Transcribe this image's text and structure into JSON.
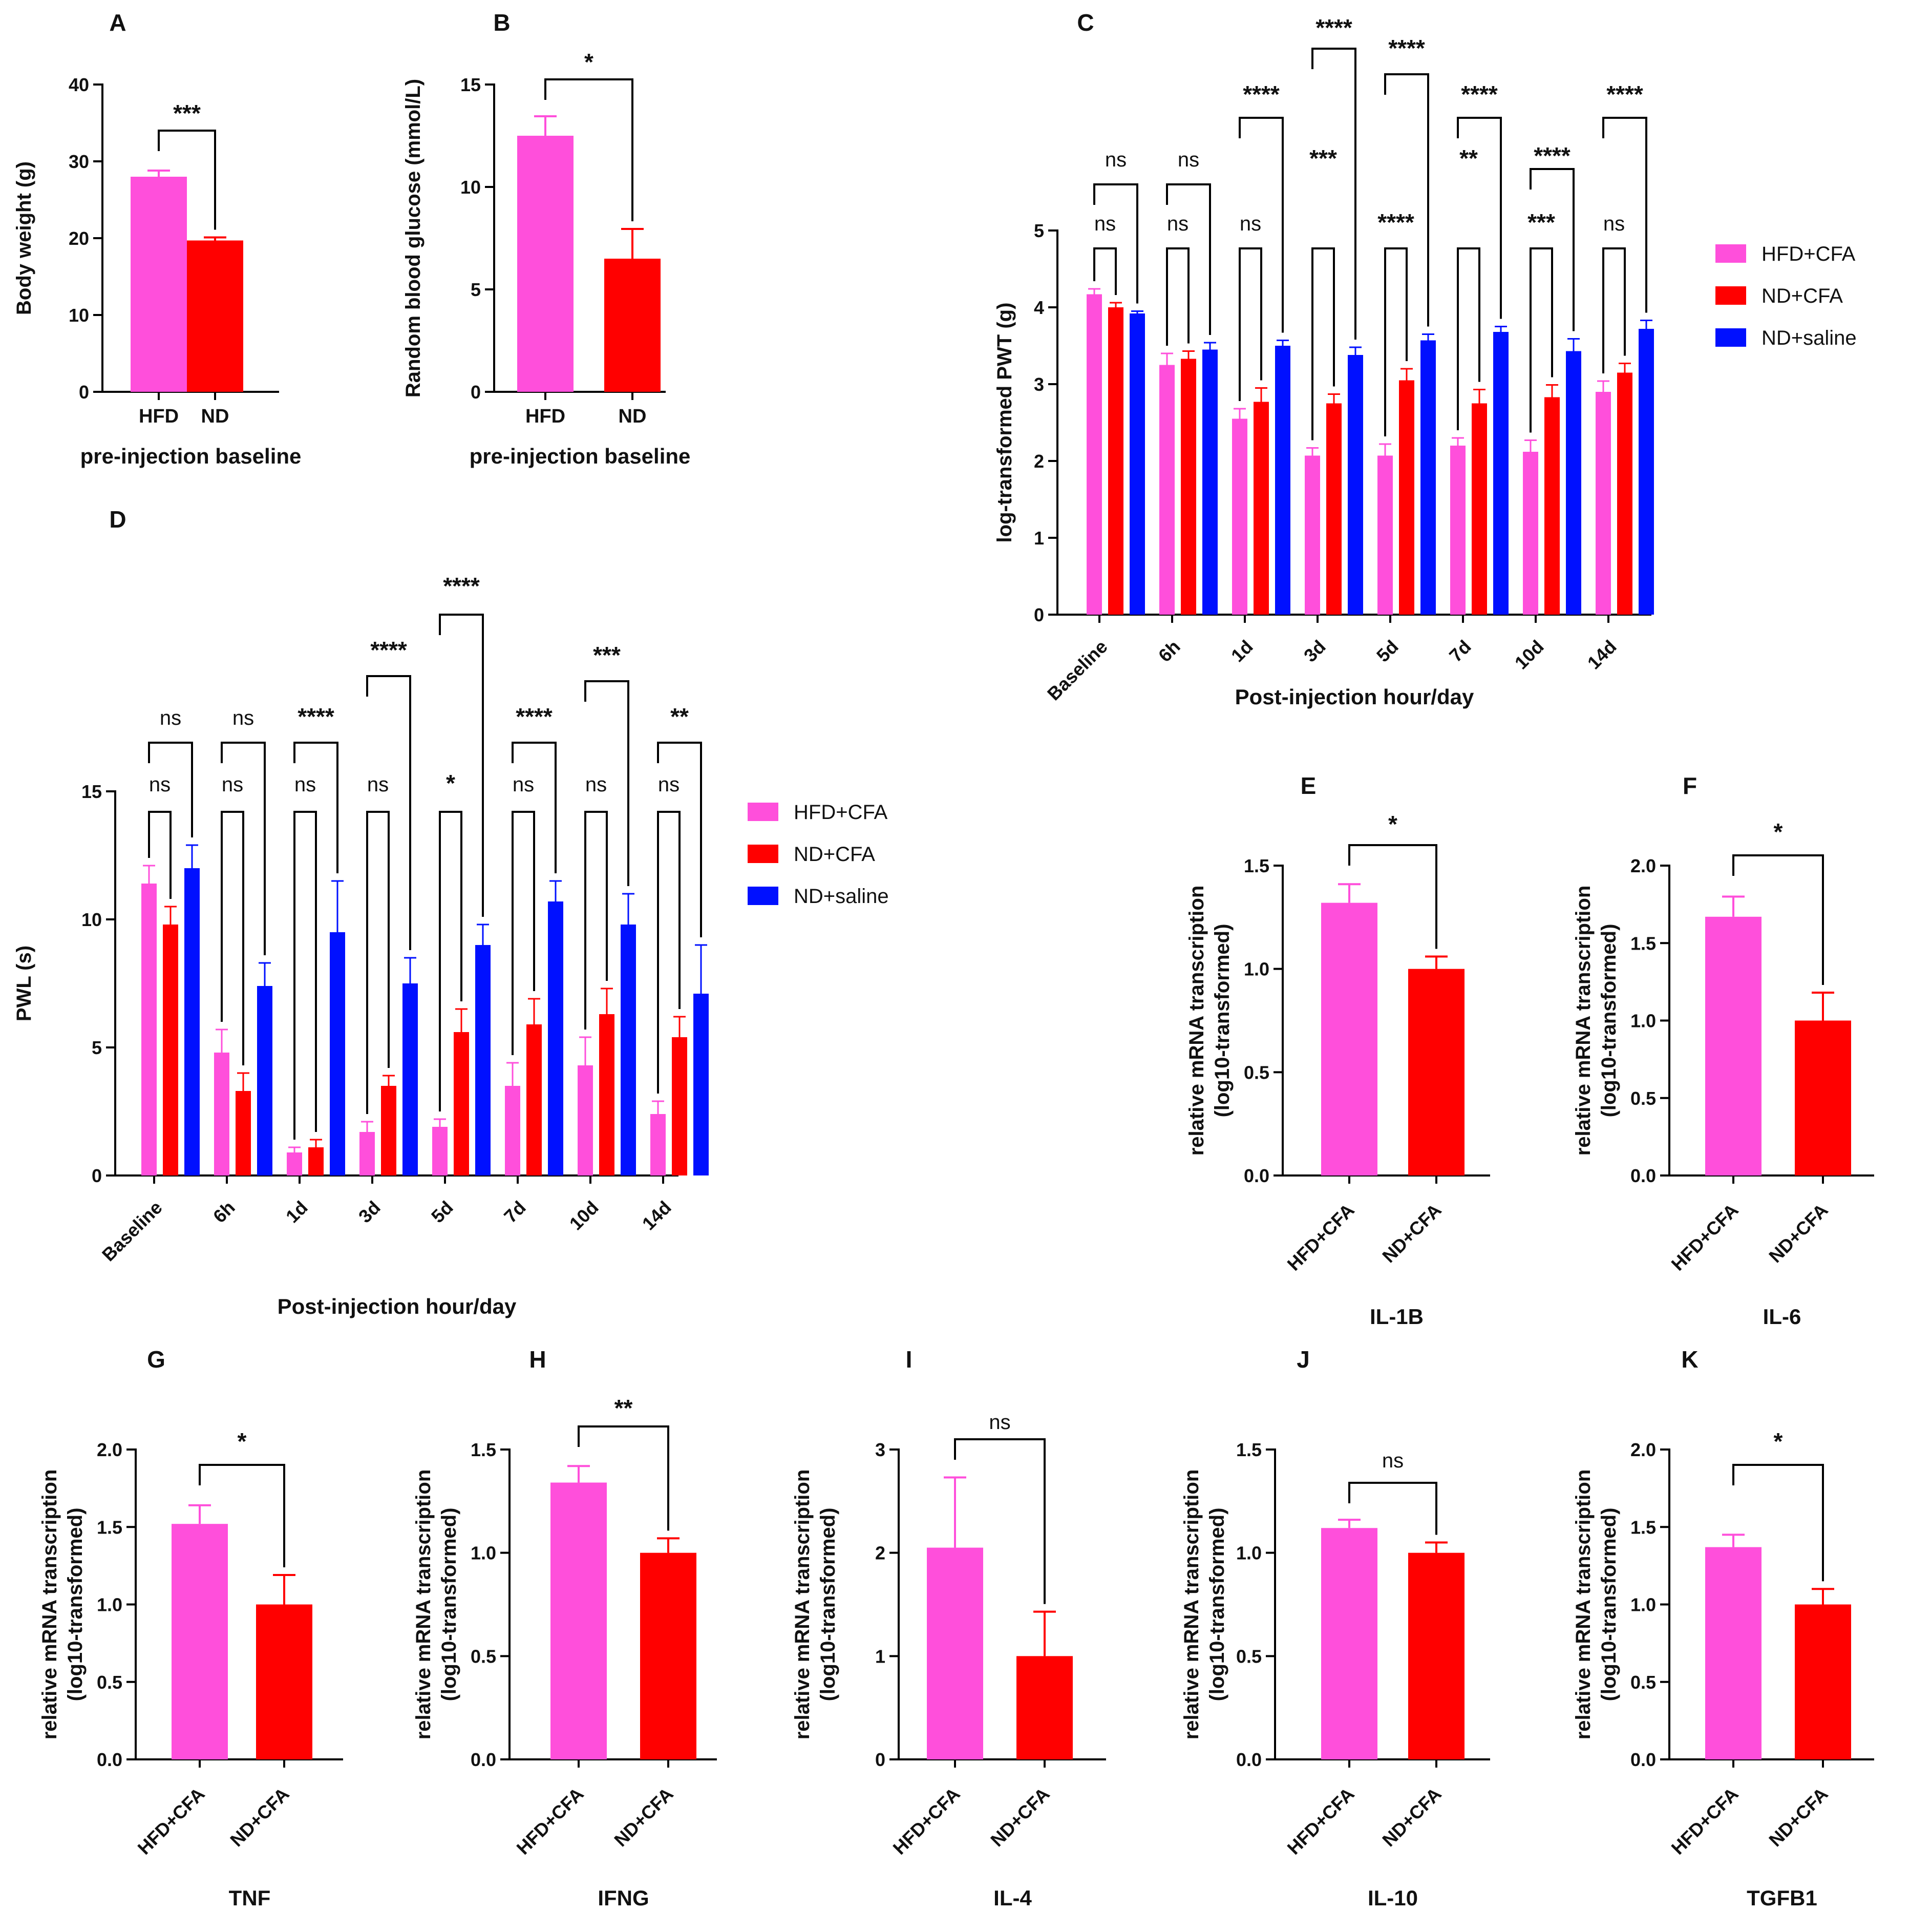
{
  "colors": {
    "hfd_cfa": "#ff4fdb",
    "nd_cfa": "#ff0000",
    "nd_saline": "#0010ff"
  },
  "chart_data": [
    {
      "id": "A",
      "type": "bar",
      "panel_letter": "A",
      "categories": [
        "HFD",
        "ND"
      ],
      "values": [
        28.0,
        19.7
      ],
      "errors": [
        0.8,
        0.4
      ],
      "ylabel": "Body weight (g)",
      "xlabel": "pre-injection baseline",
      "ylim": [
        0,
        40
      ],
      "yticks": [
        "0",
        "10",
        "20",
        "30",
        "40"
      ],
      "sig": [
        "***"
      ]
    },
    {
      "id": "B",
      "type": "bar",
      "panel_letter": "B",
      "categories": [
        "HFD",
        "ND"
      ],
      "values": [
        12.5,
        6.5
      ],
      "errors": [
        0.95,
        1.45
      ],
      "ylabel": "Random blood glucose (mmol/L)",
      "xlabel": "pre-injection baseline",
      "ylim": [
        0,
        15
      ],
      "yticks": [
        "0",
        "5",
        "10",
        "15"
      ],
      "sig": [
        "*"
      ]
    },
    {
      "id": "C",
      "type": "bar",
      "panel_letter": "C",
      "categories": [
        "Baseline",
        "6h",
        "1d",
        "3d",
        "5d",
        "7d",
        "10d",
        "14d"
      ],
      "series": [
        {
          "name": "HFD+CFA",
          "values": [
            4.17,
            3.25,
            2.55,
            2.07,
            2.07,
            2.2,
            2.12,
            2.9
          ],
          "errors": [
            0.07,
            0.15,
            0.13,
            0.1,
            0.15,
            0.1,
            0.15,
            0.14
          ]
        },
        {
          "name": "ND+CFA",
          "values": [
            4.0,
            3.33,
            2.77,
            2.75,
            3.05,
            2.75,
            2.83,
            3.15
          ],
          "errors": [
            0.06,
            0.1,
            0.18,
            0.12,
            0.15,
            0.18,
            0.16,
            0.12
          ]
        },
        {
          "name": "ND+saline",
          "values": [
            3.92,
            3.45,
            3.5,
            3.38,
            3.57,
            3.68,
            3.43,
            3.72
          ],
          "errors": [
            0.03,
            0.09,
            0.07,
            0.1,
            0.08,
            0.07,
            0.16,
            0.11
          ]
        }
      ],
      "ylabel": "log-transformed PWT (g)",
      "xlabel": "Post-injection hour/day",
      "ylim": [
        0,
        5
      ],
      "yticks": [
        "0",
        "1",
        "2",
        "3",
        "4",
        "5"
      ],
      "sig_lower": [
        "ns",
        "ns",
        "ns",
        "***",
        "****",
        "**",
        "***",
        "ns"
      ],
      "sig_upper": [
        "ns",
        "ns",
        "****",
        "****",
        "****",
        "****",
        "****",
        "****"
      ],
      "legend": [
        "HFD+CFA",
        "ND+CFA",
        "ND+saline"
      ]
    },
    {
      "id": "D",
      "type": "bar",
      "panel_letter": "D",
      "categories": [
        "Baseline",
        "6h",
        "1d",
        "3d",
        "5d",
        "7d",
        "10d",
        "14d"
      ],
      "series": [
        {
          "name": "HFD+CFA",
          "values": [
            11.4,
            4.8,
            0.9,
            1.7,
            1.9,
            3.5,
            4.3,
            2.4
          ],
          "errors": [
            0.7,
            0.9,
            0.2,
            0.4,
            0.3,
            0.9,
            1.1,
            0.5
          ]
        },
        {
          "name": "ND+CFA",
          "values": [
            9.8,
            3.3,
            1.1,
            3.5,
            5.6,
            5.9,
            6.3,
            5.4
          ],
          "errors": [
            0.7,
            0.7,
            0.3,
            0.4,
            0.9,
            1.0,
            1.0,
            0.8
          ]
        },
        {
          "name": "ND+saline",
          "values": [
            12.0,
            7.4,
            9.5,
            7.5,
            9.0,
            10.7,
            9.8,
            7.1
          ],
          "errors": [
            0.9,
            0.9,
            2.0,
            1.0,
            0.8,
            0.8,
            1.2,
            1.9
          ]
        }
      ],
      "ylabel": "PWL (s)",
      "xlabel": "Post-injection hour/day",
      "ylim": [
        0,
        15
      ],
      "yticks": [
        "0",
        "5",
        "10",
        "15"
      ],
      "sig_lower": [
        "ns",
        "ns",
        "ns",
        "ns",
        "*",
        "ns",
        "ns",
        "ns"
      ],
      "sig_upper": [
        "ns",
        "ns",
        "****",
        "****",
        "****",
        "****",
        "***",
        "**"
      ],
      "legend": [
        "HFD+CFA",
        "ND+CFA",
        "ND+saline"
      ]
    },
    {
      "id": "E",
      "type": "bar",
      "panel_letter": "E",
      "categories": [
        "HFD+CFA",
        "ND+CFA"
      ],
      "values": [
        1.32,
        1.0
      ],
      "errors": [
        0.09,
        0.06
      ],
      "ylabel": "relative mRNA transcription (log10-transformed)",
      "xlabel": "IL-1B",
      "ylim": [
        0,
        1.5
      ],
      "yticks": [
        "0.0",
        "0.5",
        "1.0",
        "1.5"
      ],
      "sig": [
        "*"
      ]
    },
    {
      "id": "F",
      "type": "bar",
      "panel_letter": "F",
      "categories": [
        "HFD+CFA",
        "ND+CFA"
      ],
      "values": [
        1.67,
        1.0
      ],
      "errors": [
        0.13,
        0.18
      ],
      "ylabel": "relative mRNA transcription (log10-transformed)",
      "xlabel": "IL-6",
      "ylim": [
        0,
        2.0
      ],
      "yticks": [
        "0.0",
        "0.5",
        "1.0",
        "1.5",
        "2.0"
      ],
      "sig": [
        "*"
      ]
    },
    {
      "id": "G",
      "type": "bar",
      "panel_letter": "G",
      "categories": [
        "HFD+CFA",
        "ND+CFA"
      ],
      "values": [
        1.52,
        1.0
      ],
      "errors": [
        0.12,
        0.19
      ],
      "ylabel": "relative mRNA transcription (log10-transformed)",
      "xlabel": "TNF",
      "ylim": [
        0,
        2.0
      ],
      "yticks": [
        "0.0",
        "0.5",
        "1.0",
        "1.5",
        "2.0"
      ],
      "sig": [
        "*"
      ]
    },
    {
      "id": "H",
      "type": "bar",
      "panel_letter": "H",
      "categories": [
        "HFD+CFA",
        "ND+CFA"
      ],
      "values": [
        1.34,
        1.0
      ],
      "errors": [
        0.08,
        0.07
      ],
      "ylabel": "relative mRNA transcription (log10-transformed)",
      "xlabel": "IFNG",
      "ylim": [
        0,
        1.5
      ],
      "yticks": [
        "0.0",
        "0.5",
        "1.0",
        "1.5"
      ],
      "sig": [
        "**"
      ]
    },
    {
      "id": "I",
      "type": "bar",
      "panel_letter": "I",
      "categories": [
        "HFD+CFA",
        "ND+CFA"
      ],
      "values": [
        2.05,
        1.0
      ],
      "errors": [
        0.68,
        0.43
      ],
      "ylabel": "relative mRNA transcription (log10-transformed)",
      "xlabel": "IL-4",
      "ylim": [
        0,
        3
      ],
      "yticks": [
        "0",
        "1",
        "2",
        "3"
      ],
      "sig": [
        "ns"
      ]
    },
    {
      "id": "J",
      "type": "bar",
      "panel_letter": "J",
      "categories": [
        "HFD+CFA",
        "ND+CFA"
      ],
      "values": [
        1.12,
        1.0
      ],
      "errors": [
        0.04,
        0.05
      ],
      "ylabel": "relative mRNA transcription (log10-transformed)",
      "xlabel": "IL-10",
      "ylim": [
        0,
        1.5
      ],
      "yticks": [
        "0.0",
        "0.5",
        "1.0",
        "1.5"
      ],
      "sig": [
        "ns"
      ]
    },
    {
      "id": "K",
      "type": "bar",
      "panel_letter": "K",
      "categories": [
        "HFD+CFA",
        "ND+CFA"
      ],
      "values": [
        1.37,
        1.0
      ],
      "errors": [
        0.08,
        0.1
      ],
      "ylabel": "relative mRNA transcription (log10-transformed)",
      "xlabel": "TGFB1",
      "ylim": [
        0,
        2.0
      ],
      "yticks": [
        "0.0",
        "0.5",
        "1.0",
        "1.5",
        "2.0"
      ],
      "sig": [
        "*"
      ]
    }
  ]
}
